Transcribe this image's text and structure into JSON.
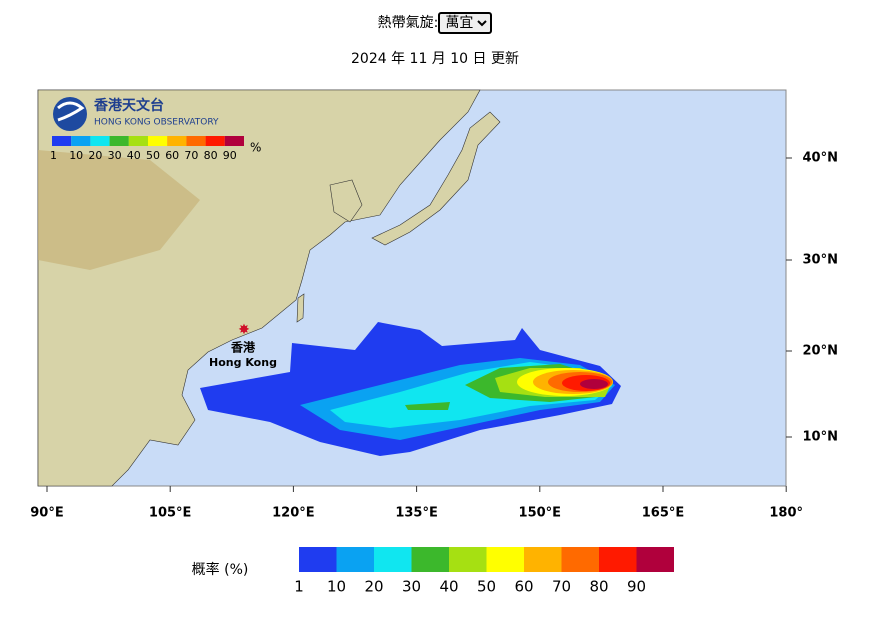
{
  "header": {
    "label": "熱帶氣旋:",
    "selected": "萬宜",
    "updated": "2024 年 11 月 10 日 更新"
  },
  "map": {
    "logo": {
      "chinese": "香港天文台",
      "english": "HONG KONG OBSERVATORY"
    },
    "inset_legend": {
      "labels": [
        "1",
        "10",
        "20",
        "30",
        "40",
        "50",
        "60",
        "70",
        "80",
        "90"
      ],
      "unit": "%"
    },
    "place": {
      "chinese": "香港",
      "english": "Hong Kong"
    },
    "lat_labels": [
      "40°N",
      "30°N",
      "20°N",
      "10°N"
    ],
    "lon_labels": [
      "90°E",
      "105°E",
      "120°E",
      "135°E",
      "150°E",
      "165°E",
      "180°"
    ]
  },
  "legend": {
    "title": "概率 (%)",
    "labels": [
      "1",
      "10",
      "20",
      "30",
      "40",
      "50",
      "60",
      "70",
      "80",
      "90"
    ],
    "colors": [
      "#1f3cf0",
      "#0aa2f2",
      "#10e6f0",
      "#3cb82c",
      "#a6e012",
      "#ffff00",
      "#ffb300",
      "#ff6a00",
      "#ff1a00",
      "#b0003c"
    ]
  }
}
